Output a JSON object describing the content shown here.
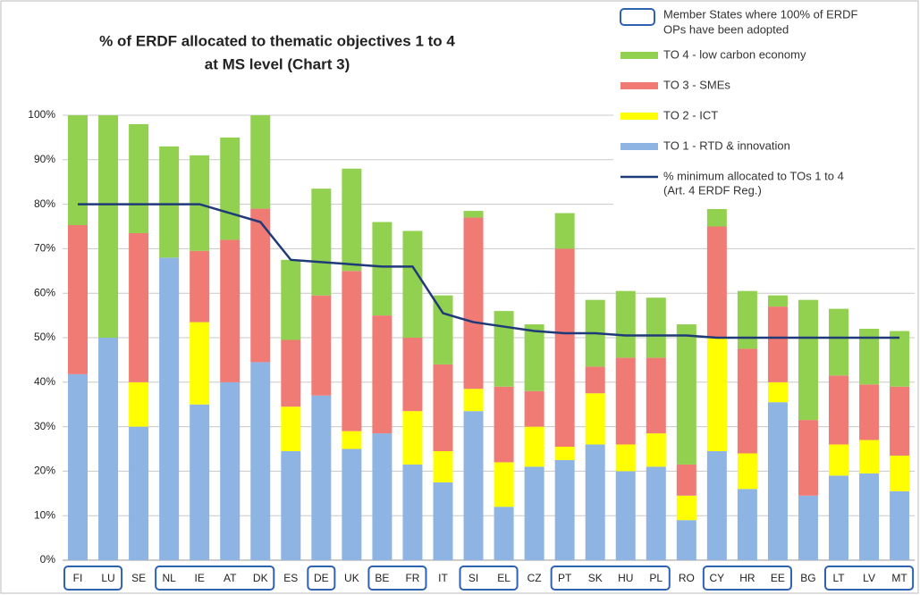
{
  "chart_data": {
    "type": "bar",
    "stacked": true,
    "title": [
      "% of ERDF allocated to thematic objectives 1 to 4",
      "at MS level (Chart 3)"
    ],
    "categories": [
      "FI",
      "LU",
      "SE",
      "NL",
      "IE",
      "AT",
      "DK",
      "ES",
      "DE",
      "UK",
      "BE",
      "FR",
      "IT",
      "SI",
      "EL",
      "CZ",
      "PT",
      "SK",
      "HU",
      "PL",
      "RO",
      "CY",
      "HR",
      "EE",
      "BG",
      "LT",
      "LV",
      "MT"
    ],
    "adopted": {
      "name": [
        "Member States where 100% of ERDF",
        "OPs have been adopted"
      ],
      "color": "#2e62b0",
      "values": [
        true,
        true,
        false,
        true,
        true,
        true,
        true,
        false,
        true,
        false,
        true,
        true,
        false,
        true,
        true,
        false,
        true,
        true,
        true,
        true,
        false,
        true,
        true,
        true,
        false,
        true,
        true,
        true
      ]
    },
    "series": [
      {
        "name": "TO 1 - RTD & innovation",
        "type": "bar",
        "color": "#8db4e2",
        "values": [
          41.8,
          50,
          30,
          68,
          35,
          40,
          44.5,
          24.5,
          37,
          25,
          28.5,
          21.5,
          17.5,
          33.5,
          12,
          21,
          22.5,
          26,
          20,
          21,
          9,
          24.5,
          16,
          35.5,
          14.5,
          19,
          19.5,
          15.5
        ]
      },
      {
        "name": "TO 2 - ICT",
        "type": "bar",
        "color": "#ffff00",
        "values": [
          0,
          0,
          10,
          0,
          18.5,
          0,
          0,
          10,
          0,
          4,
          0,
          12,
          7,
          5,
          10,
          9,
          3,
          11.5,
          6,
          7.5,
          5.5,
          25.5,
          8,
          4.5,
          0,
          7,
          7.5,
          8
        ]
      },
      {
        "name": "TO 3 - SMEs",
        "type": "bar",
        "color": "#f07a74",
        "values": [
          33.5,
          0,
          33.5,
          0,
          16,
          32,
          34.5,
          15,
          22.5,
          36,
          26.5,
          16.5,
          19.5,
          38.5,
          17,
          8,
          44.5,
          6,
          19.5,
          17,
          7,
          25,
          23.5,
          17,
          17,
          15.5,
          12.5,
          15.5
        ]
      },
      {
        "name": "TO 4 - low carbon economy",
        "type": "bar",
        "color": "#92d050",
        "values": [
          24.7,
          50,
          24.5,
          25,
          21.5,
          23,
          21,
          18,
          24,
          23,
          21,
          24,
          15.5,
          1.5,
          17,
          15,
          8,
          15,
          15,
          13.5,
          31.5,
          4,
          13,
          2.5,
          27,
          15,
          12.5,
          12.5
        ]
      },
      {
        "name": [
          "% minimum allocated to TOs 1 to 4",
          "(Art. 4 ERDF Reg.)"
        ],
        "type": "line",
        "color": "#1f3a78",
        "values": [
          80,
          80,
          80,
          80,
          80,
          78,
          76,
          67.5,
          67,
          66.5,
          66,
          66,
          55.5,
          53.5,
          52.5,
          51.5,
          51,
          51,
          50.5,
          50.5,
          50.5,
          50,
          50,
          50,
          50,
          50,
          50,
          50
        ]
      }
    ],
    "ylim": [
      0,
      100
    ],
    "yticks": [
      {
        "value": 0,
        "label": "0%"
      },
      {
        "value": 10,
        "label": "10%"
      },
      {
        "value": 20,
        "label": "20%"
      },
      {
        "value": 30,
        "label": "30%"
      },
      {
        "value": 40,
        "label": "40%"
      },
      {
        "value": 50,
        "label": "50%"
      },
      {
        "value": 60,
        "label": "60%"
      },
      {
        "value": 70,
        "label": "70%"
      },
      {
        "value": 80,
        "label": "80%"
      },
      {
        "value": 90,
        "label": "90%"
      },
      {
        "value": 100,
        "label": "100%"
      }
    ],
    "grid": true
  }
}
